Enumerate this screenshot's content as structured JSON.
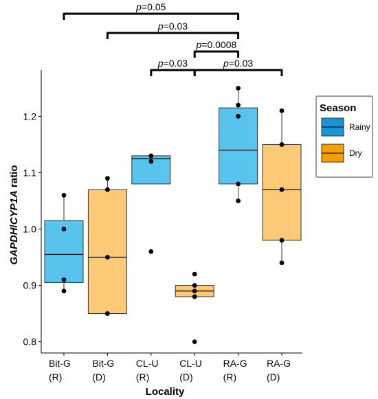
{
  "chart_data": {
    "type": "box",
    "xlabel": "Locality",
    "ylabel": "GAPDH/CYP1A ratio",
    "ylim": [
      0.78,
      1.27
    ],
    "yticks": [
      0.8,
      0.9,
      1.0,
      1.1,
      1.2
    ],
    "ytick_labels": [
      "0.8",
      "0.9",
      "1.0",
      "1.1",
      "1.2"
    ],
    "categories": [
      {
        "line1": "Bit-G",
        "line2": "(R)"
      },
      {
        "line1": "Bit-G",
        "line2": "(D)"
      },
      {
        "line1": "CL-U",
        "line2": "(R)"
      },
      {
        "line1": "CL-U",
        "line2": "(D)"
      },
      {
        "line1": "RA-G",
        "line2": "(R)"
      },
      {
        "line1": "RA-G",
        "line2": "(D)"
      }
    ],
    "boxes": [
      {
        "season": "Rainy",
        "q1": 0.905,
        "median": 0.955,
        "q3": 1.015,
        "whisker_low": 0.89,
        "whisker_high": 1.06,
        "points": [
          1.06,
          1.0,
          0.91,
          0.89
        ]
      },
      {
        "season": "Dry",
        "q1": 0.85,
        "median": 0.95,
        "q3": 1.07,
        "whisker_low": 0.85,
        "whisker_high": 1.09,
        "points": [
          1.09,
          1.07,
          0.95,
          0.85
        ]
      },
      {
        "season": "Rainy",
        "q1": 1.08,
        "median": 1.125,
        "q3": 1.13,
        "whisker_low": 1.08,
        "whisker_high": 1.13,
        "points": [
          1.13,
          1.12,
          0.96
        ]
      },
      {
        "season": "Dry",
        "q1": 0.88,
        "median": 0.89,
        "q3": 0.9,
        "whisker_low": 0.88,
        "whisker_high": 0.9,
        "points": [
          0.92,
          0.9,
          0.89,
          0.88,
          0.8
        ]
      },
      {
        "season": "Rainy",
        "q1": 1.08,
        "median": 1.14,
        "q3": 1.215,
        "whisker_low": 1.05,
        "whisker_high": 1.25,
        "points": [
          1.25,
          1.22,
          1.2,
          1.08,
          1.05
        ]
      },
      {
        "season": "Dry",
        "q1": 0.98,
        "median": 1.07,
        "q3": 1.15,
        "whisker_low": 0.94,
        "whisker_high": 1.21,
        "points": [
          1.21,
          1.15,
          1.07,
          0.98,
          0.94
        ]
      }
    ],
    "comparisons": [
      {
        "from": 0,
        "to": 4,
        "label": "p=0.05"
      },
      {
        "from": 1,
        "to": 4,
        "label": "p=0.03"
      },
      {
        "from": 3,
        "to": 4,
        "label": "p=0.0008"
      },
      {
        "from": 2,
        "to": 3,
        "label": "p=0.03"
      },
      {
        "from": 3,
        "to": 5,
        "label": "p=0.03"
      }
    ],
    "legend": {
      "title": "Season",
      "placement": "right",
      "items": [
        {
          "label": "Rainy",
          "color": "#58c4ee"
        },
        {
          "label": "Dry",
          "color": "#fcc977"
        }
      ]
    },
    "colors": {
      "Rainy": "#58c4ee",
      "Dry": "#fcc977",
      "Rainy_legend": "#1a95d8",
      "Dry_legend": "#f59e00"
    },
    "grid": false
  }
}
